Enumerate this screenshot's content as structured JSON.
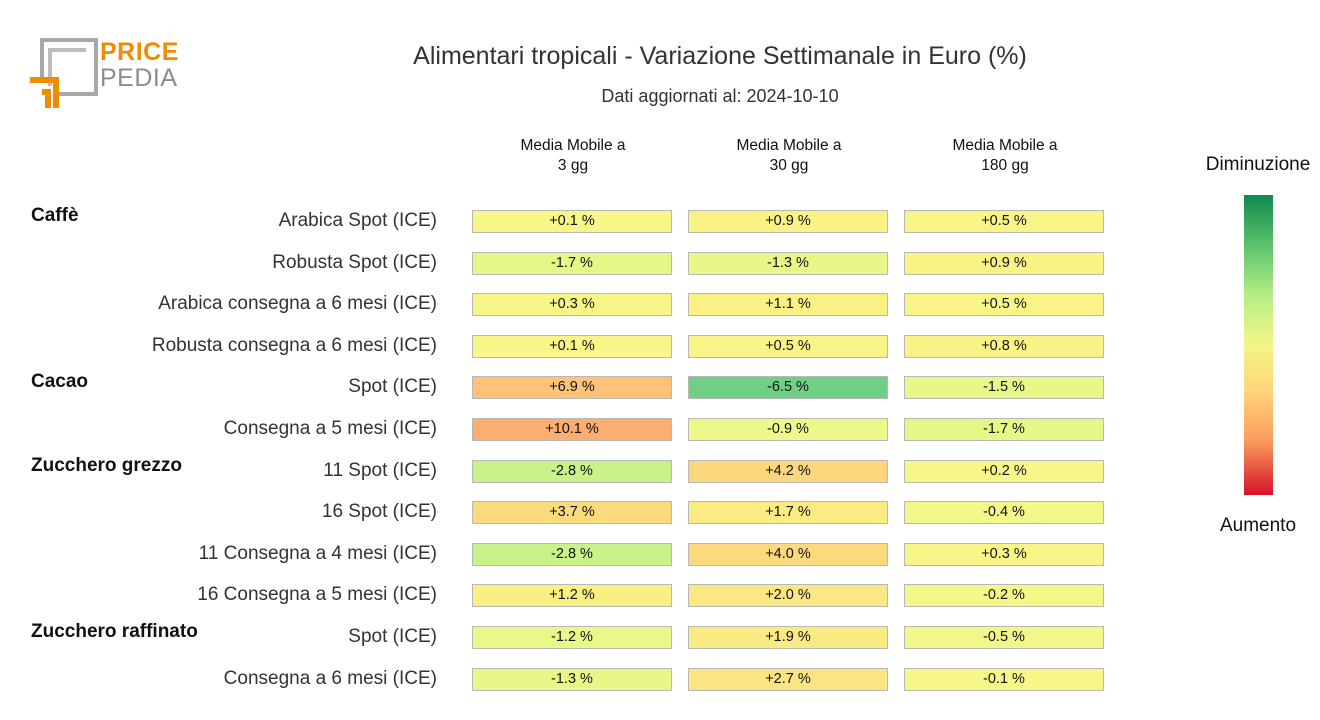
{
  "logo": {
    "line1": "PRICE",
    "line2": "PEDIA"
  },
  "chart_data": {
    "type": "table",
    "title": "Alimentari tropicali - Variazione Settimanale in Euro (%)",
    "subtitle": "Dati aggiornati al: 2024-10-10",
    "columns": [
      "Media Mobile a\n3 gg",
      "Media Mobile a\n30 gg",
      "Media Mobile a\n180 gg"
    ],
    "legend": {
      "top": "Diminuzione",
      "bottom": "Aumento"
    },
    "groups": [
      {
        "name": "Caffè",
        "rows": [
          {
            "label": "Arabica Spot (ICE)",
            "values": [
              0.1,
              0.9,
              0.5
            ],
            "text": [
              "+0.1 %",
              "+0.9 %",
              "+0.5 %"
            ]
          },
          {
            "label": "Robusta Spot (ICE)",
            "values": [
              -1.7,
              -1.3,
              0.9
            ],
            "text": [
              "-1.7 %",
              "-1.3 %",
              "+0.9 %"
            ]
          },
          {
            "label": "Arabica consegna a 6 mesi (ICE)",
            "values": [
              0.3,
              1.1,
              0.5
            ],
            "text": [
              "+0.3 %",
              "+1.1 %",
              "+0.5 %"
            ]
          },
          {
            "label": "Robusta consegna a 6 mesi (ICE)",
            "values": [
              0.1,
              0.5,
              0.8
            ],
            "text": [
              "+0.1 %",
              "+0.5 %",
              "+0.8 %"
            ]
          }
        ]
      },
      {
        "name": "Cacao",
        "rows": [
          {
            "label": "Spot (ICE)",
            "values": [
              6.9,
              -6.5,
              -1.5
            ],
            "text": [
              "+6.9 %",
              "-6.5 %",
              "-1.5 %"
            ]
          },
          {
            "label": "Consegna a 5 mesi (ICE)",
            "values": [
              10.1,
              -0.9,
              -1.7
            ],
            "text": [
              "+10.1 %",
              "-0.9 %",
              "-1.7 %"
            ]
          }
        ]
      },
      {
        "name": "Zucchero grezzo",
        "rows": [
          {
            "label": "11 Spot (ICE)",
            "values": [
              -2.8,
              4.2,
              0.2
            ],
            "text": [
              "-2.8 %",
              "+4.2 %",
              "+0.2 %"
            ]
          },
          {
            "label": "16 Spot (ICE)",
            "values": [
              3.7,
              1.7,
              -0.4
            ],
            "text": [
              "+3.7 %",
              "+1.7 %",
              "-0.4 %"
            ]
          },
          {
            "label": "11 Consegna a 4 mesi (ICE)",
            "values": [
              -2.8,
              4.0,
              0.3
            ],
            "text": [
              "-2.8 %",
              "+4.0 %",
              "+0.3 %"
            ]
          },
          {
            "label": "16 Consegna a 5 mesi (ICE)",
            "values": [
              1.2,
              2.0,
              -0.2
            ],
            "text": [
              "+1.2 %",
              "+2.0 %",
              "-0.2 %"
            ]
          }
        ]
      },
      {
        "name": "Zucchero raffinato",
        "rows": [
          {
            "label": "Spot (ICE)",
            "values": [
              -1.2,
              1.9,
              -0.5
            ],
            "text": [
              "-1.2 %",
              "+1.9 %",
              "-0.5 %"
            ]
          },
          {
            "label": "Consegna a 6 mesi (ICE)",
            "values": [
              -1.3,
              2.7,
              -0.1
            ],
            "text": [
              "-1.3 %",
              "+2.7 %",
              "-0.1 %"
            ]
          }
        ]
      }
    ]
  }
}
